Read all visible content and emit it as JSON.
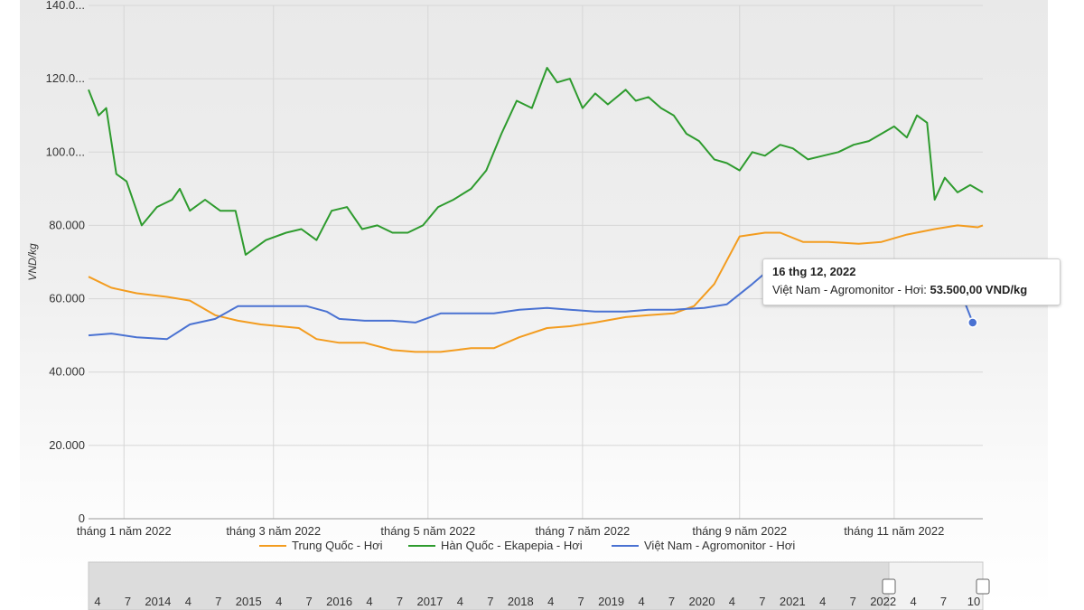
{
  "chart_data": {
    "type": "line",
    "ylabel": "VND/kg",
    "ylim": [
      0,
      140000
    ],
    "y_ticks": [
      "0",
      "20.000",
      "40.000",
      "60.000",
      "80.000",
      "100.0...",
      "120.0...",
      "140.0..."
    ],
    "x_range": [
      "2022-01-01",
      "2022-12-20"
    ],
    "x_ticks": [
      {
        "date": "2022-01-15",
        "label": "tháng 1 năm 2022"
      },
      {
        "date": "2022-03-15",
        "label": "tháng 3 năm 2022"
      },
      {
        "date": "2022-05-15",
        "label": "tháng 5 năm 2022"
      },
      {
        "date": "2022-07-15",
        "label": "tháng 7 năm 2022"
      },
      {
        "date": "2022-09-15",
        "label": "tháng 9 năm 2022"
      },
      {
        "date": "2022-11-15",
        "label": "tháng 11 năm 2022"
      }
    ],
    "grid": true,
    "legend": "bottom",
    "series": [
      {
        "name": "Trung Quốc - Hơi",
        "color": "#f39c1f",
        "points": [
          [
            "2022-01-01",
            66000
          ],
          [
            "2022-01-10",
            63000
          ],
          [
            "2022-01-20",
            61500
          ],
          [
            "2022-02-01",
            60500
          ],
          [
            "2022-02-10",
            59500
          ],
          [
            "2022-02-20",
            55500
          ],
          [
            "2022-03-01",
            54000
          ],
          [
            "2022-03-10",
            53000
          ],
          [
            "2022-03-25",
            52000
          ],
          [
            "2022-04-01",
            49000
          ],
          [
            "2022-04-10",
            48000
          ],
          [
            "2022-04-20",
            48000
          ],
          [
            "2022-05-01",
            46000
          ],
          [
            "2022-05-10",
            45500
          ],
          [
            "2022-05-20",
            45500
          ],
          [
            "2022-06-01",
            46500
          ],
          [
            "2022-06-10",
            46500
          ],
          [
            "2022-06-20",
            49500
          ],
          [
            "2022-07-01",
            52000
          ],
          [
            "2022-07-10",
            52500
          ],
          [
            "2022-07-20",
            53500
          ],
          [
            "2022-08-01",
            55000
          ],
          [
            "2022-08-10",
            55500
          ],
          [
            "2022-08-20",
            56000
          ],
          [
            "2022-08-28",
            58000
          ],
          [
            "2022-09-05",
            64000
          ],
          [
            "2022-09-15",
            77000
          ],
          [
            "2022-09-25",
            78000
          ],
          [
            "2022-10-01",
            78000
          ],
          [
            "2022-10-10",
            75500
          ],
          [
            "2022-10-20",
            75500
          ],
          [
            "2022-11-01",
            75000
          ],
          [
            "2022-11-10",
            75500
          ],
          [
            "2022-11-20",
            77500
          ],
          [
            "2022-12-01",
            79000
          ],
          [
            "2022-12-10",
            80000
          ],
          [
            "2022-12-18",
            79500
          ],
          [
            "2022-12-20",
            80000
          ]
        ]
      },
      {
        "name": "Hàn Quốc - Ekapepia - Hơi",
        "color": "#2e9b2e",
        "points": [
          [
            "2022-01-01",
            117000
          ],
          [
            "2022-01-05",
            110000
          ],
          [
            "2022-01-08",
            112000
          ],
          [
            "2022-01-12",
            94000
          ],
          [
            "2022-01-16",
            92000
          ],
          [
            "2022-01-22",
            80000
          ],
          [
            "2022-01-28",
            85000
          ],
          [
            "2022-02-03",
            87000
          ],
          [
            "2022-02-06",
            90000
          ],
          [
            "2022-02-10",
            84000
          ],
          [
            "2022-02-16",
            87000
          ],
          [
            "2022-02-22",
            84000
          ],
          [
            "2022-02-28",
            84000
          ],
          [
            "2022-03-04",
            72000
          ],
          [
            "2022-03-12",
            76000
          ],
          [
            "2022-03-20",
            78000
          ],
          [
            "2022-03-26",
            79000
          ],
          [
            "2022-04-01",
            76000
          ],
          [
            "2022-04-07",
            84000
          ],
          [
            "2022-04-13",
            85000
          ],
          [
            "2022-04-19",
            79000
          ],
          [
            "2022-04-25",
            80000
          ],
          [
            "2022-05-01",
            78000
          ],
          [
            "2022-05-07",
            78000
          ],
          [
            "2022-05-13",
            80000
          ],
          [
            "2022-05-19",
            85000
          ],
          [
            "2022-05-25",
            87000
          ],
          [
            "2022-06-01",
            90000
          ],
          [
            "2022-06-07",
            95000
          ],
          [
            "2022-06-13",
            105000
          ],
          [
            "2022-06-19",
            114000
          ],
          [
            "2022-06-25",
            112000
          ],
          [
            "2022-07-01",
            123000
          ],
          [
            "2022-07-05",
            119000
          ],
          [
            "2022-07-10",
            120000
          ],
          [
            "2022-07-15",
            112000
          ],
          [
            "2022-07-20",
            116000
          ],
          [
            "2022-07-25",
            113000
          ],
          [
            "2022-08-01",
            117000
          ],
          [
            "2022-08-05",
            114000
          ],
          [
            "2022-08-10",
            115000
          ],
          [
            "2022-08-15",
            112000
          ],
          [
            "2022-08-20",
            110000
          ],
          [
            "2022-08-25",
            105000
          ],
          [
            "2022-08-30",
            103000
          ],
          [
            "2022-09-05",
            98000
          ],
          [
            "2022-09-10",
            97000
          ],
          [
            "2022-09-15",
            95000
          ],
          [
            "2022-09-20",
            100000
          ],
          [
            "2022-09-25",
            99000
          ],
          [
            "2022-10-01",
            102000
          ],
          [
            "2022-10-06",
            101000
          ],
          [
            "2022-10-12",
            98000
          ],
          [
            "2022-10-18",
            99000
          ],
          [
            "2022-10-24",
            100000
          ],
          [
            "2022-10-30",
            102000
          ],
          [
            "2022-11-05",
            103000
          ],
          [
            "2022-11-10",
            105000
          ],
          [
            "2022-11-15",
            107000
          ],
          [
            "2022-11-20",
            104000
          ],
          [
            "2022-11-24",
            110000
          ],
          [
            "2022-11-28",
            108000
          ],
          [
            "2022-12-01",
            87000
          ],
          [
            "2022-12-05",
            93000
          ],
          [
            "2022-12-10",
            89000
          ],
          [
            "2022-12-15",
            91000
          ],
          [
            "2022-12-20",
            89000
          ]
        ]
      },
      {
        "name": "Việt Nam - Agromonitor - Hơi",
        "color": "#4a72d2",
        "points": [
          [
            "2022-01-01",
            50000
          ],
          [
            "2022-01-10",
            50500
          ],
          [
            "2022-01-20",
            49500
          ],
          [
            "2022-02-01",
            49000
          ],
          [
            "2022-02-10",
            53000
          ],
          [
            "2022-02-20",
            54500
          ],
          [
            "2022-03-01",
            58000
          ],
          [
            "2022-03-10",
            58000
          ],
          [
            "2022-03-20",
            58000
          ],
          [
            "2022-03-28",
            58000
          ],
          [
            "2022-04-05",
            56500
          ],
          [
            "2022-04-10",
            54500
          ],
          [
            "2022-04-20",
            54000
          ],
          [
            "2022-05-01",
            54000
          ],
          [
            "2022-05-10",
            53500
          ],
          [
            "2022-05-20",
            56000
          ],
          [
            "2022-06-01",
            56000
          ],
          [
            "2022-06-10",
            56000
          ],
          [
            "2022-06-20",
            57000
          ],
          [
            "2022-07-01",
            57500
          ],
          [
            "2022-07-10",
            57000
          ],
          [
            "2022-07-20",
            56500
          ],
          [
            "2022-08-01",
            56500
          ],
          [
            "2022-08-10",
            57000
          ],
          [
            "2022-08-20",
            57000
          ],
          [
            "2022-09-01",
            57500
          ],
          [
            "2022-09-10",
            58500
          ],
          [
            "2022-09-20",
            64000
          ],
          [
            "2022-10-01",
            70500
          ],
          [
            "2022-10-10",
            69000
          ],
          [
            "2022-10-20",
            65000
          ],
          [
            "2022-11-01",
            65000
          ],
          [
            "2022-11-15",
            65000
          ],
          [
            "2022-12-01",
            65000
          ],
          [
            "2022-12-10",
            64000
          ],
          [
            "2022-12-16",
            53500
          ]
        ]
      }
    ],
    "tooltip": {
      "date": "16 thg 12, 2022",
      "series": "Việt Nam - Agromonitor - Hơi:",
      "value": "53.500,00 VND/kg"
    },
    "navigator": {
      "labels": [
        "4",
        "7",
        "2014",
        "4",
        "7",
        "2015",
        "4",
        "7",
        "2016",
        "4",
        "7",
        "2017",
        "4",
        "7",
        "2018",
        "4",
        "7",
        "2019",
        "4",
        "7",
        "2020",
        "4",
        "7",
        "2021",
        "4",
        "7",
        "2022",
        "4",
        "7",
        "10"
      ]
    }
  }
}
